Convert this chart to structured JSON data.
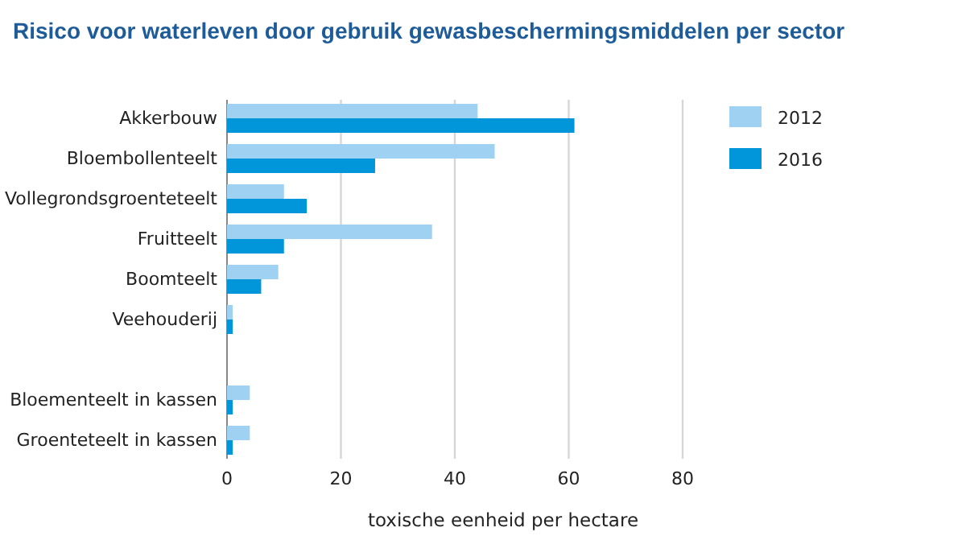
{
  "chart_data": {
    "type": "bar",
    "orientation": "horizontal",
    "title": "Risico voor waterleven door gebruik gewasbeschermingsmiddelen per sector",
    "xlabel": "toxische eenheid per hectare",
    "categories": [
      "Akkerbouw",
      "Bloembollenteelt",
      "Vollegrondsgroenteteelt",
      "Fruitteelt",
      "Boomteelt",
      "Veehouderij",
      null,
      "Bloementeelt in kassen",
      "Groenteteelt in kassen"
    ],
    "series": [
      {
        "name": "2012",
        "color": "#9fd2f2",
        "values": [
          44,
          47,
          10,
          36,
          9,
          1,
          null,
          4,
          4
        ]
      },
      {
        "name": "2016",
        "color": "#0096d9",
        "values": [
          61,
          26,
          14,
          10,
          6,
          1,
          null,
          1,
          1
        ]
      }
    ],
    "xlim": [
      0,
      80
    ],
    "xticks": [
      0,
      20,
      40,
      60,
      80
    ],
    "grid": "x",
    "legend": "top right"
  }
}
